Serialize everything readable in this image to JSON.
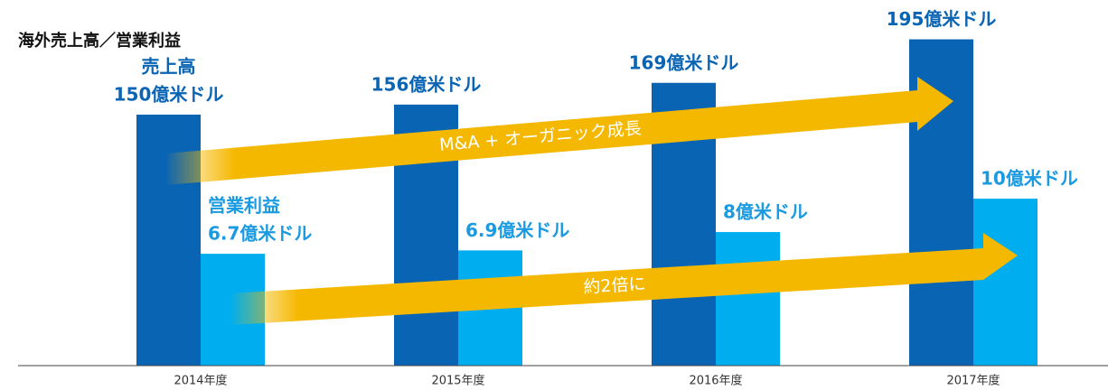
{
  "chart_data": {
    "type": "bar",
    "title": "海外売上高／営業利益",
    "categories": [
      "2014年度",
      "2015年度",
      "2016年度",
      "2017年度"
    ],
    "series": [
      {
        "name": "売上高",
        "color": "#0a64b4",
        "values": [
          150,
          156,
          169,
          195
        ],
        "value_labels": [
          "150億米ドル",
          "156億米ドル",
          "169億米ドル",
          "195億米ドル"
        ],
        "label_color": "#0a64b4"
      },
      {
        "name": "営業利益",
        "color": "#00aeef",
        "axis": "y2",
        "values": [
          6.7,
          6.9,
          8,
          10
        ],
        "value_labels": [
          "6.7億米ドル",
          "6.9億米ドル",
          "8億米ドル",
          "10億米ドル"
        ],
        "label_color": "#1a9ae0"
      }
    ],
    "ylim": [
      0,
      218.5
    ],
    "y2lim": [
      0,
      21.9
    ],
    "annotations": [
      "M&A + オーガニック成長",
      "約2倍に"
    ]
  }
}
